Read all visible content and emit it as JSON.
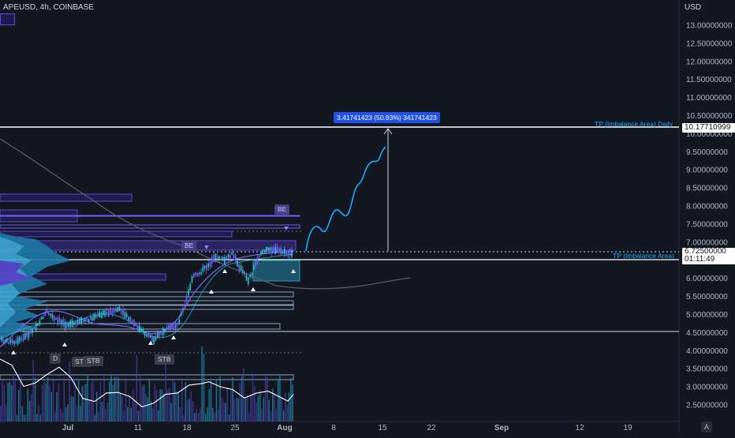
{
  "header": {
    "symbol_title": "APEUSD, 4h, COINBASE"
  },
  "price_axis": {
    "currency": "USD",
    "ticks": [
      "13.00000000",
      "12.50000000",
      "12.00000000",
      "11.50000000",
      "11.00000000",
      "10.50000000",
      "10.00000000",
      "9.50000000",
      "9.00000000",
      "8.50000000",
      "8.00000000",
      "7.50000000",
      "7.00000000",
      "6.50000000",
      "6.00000000",
      "5.50000000",
      "5.00000000",
      "4.50000000",
      "4.00000000",
      "3.50000000",
      "3.00000000",
      "2.50000000"
    ],
    "target_price_tag": "10.17710999",
    "current_price_tag": "6.72500000",
    "countdown": "01:11:49",
    "scale_badge": "A"
  },
  "time_axis": {
    "ticks": [
      "Jul",
      "11",
      "18",
      "25",
      "Aug",
      "8",
      "15",
      "22",
      "Sep",
      "12",
      "19"
    ]
  },
  "measure_label": "3.41741423 (50.93%) 341741423",
  "annotations": {
    "tp_daily": "TP (Imbalance Area) Daily",
    "tp_current": "TP (Imbalance Area)",
    "be_1": "BE",
    "be_2": "BE",
    "d_label": "D",
    "stb_1": "STB",
    "stb_2": "STB",
    "stb_3": "STB"
  },
  "colors": {
    "background": "#131722",
    "accent_blue": "#22aaff",
    "zone_purple": "#5b4bd6",
    "bull": "#26c6da",
    "tag": "#ffffff"
  }
}
